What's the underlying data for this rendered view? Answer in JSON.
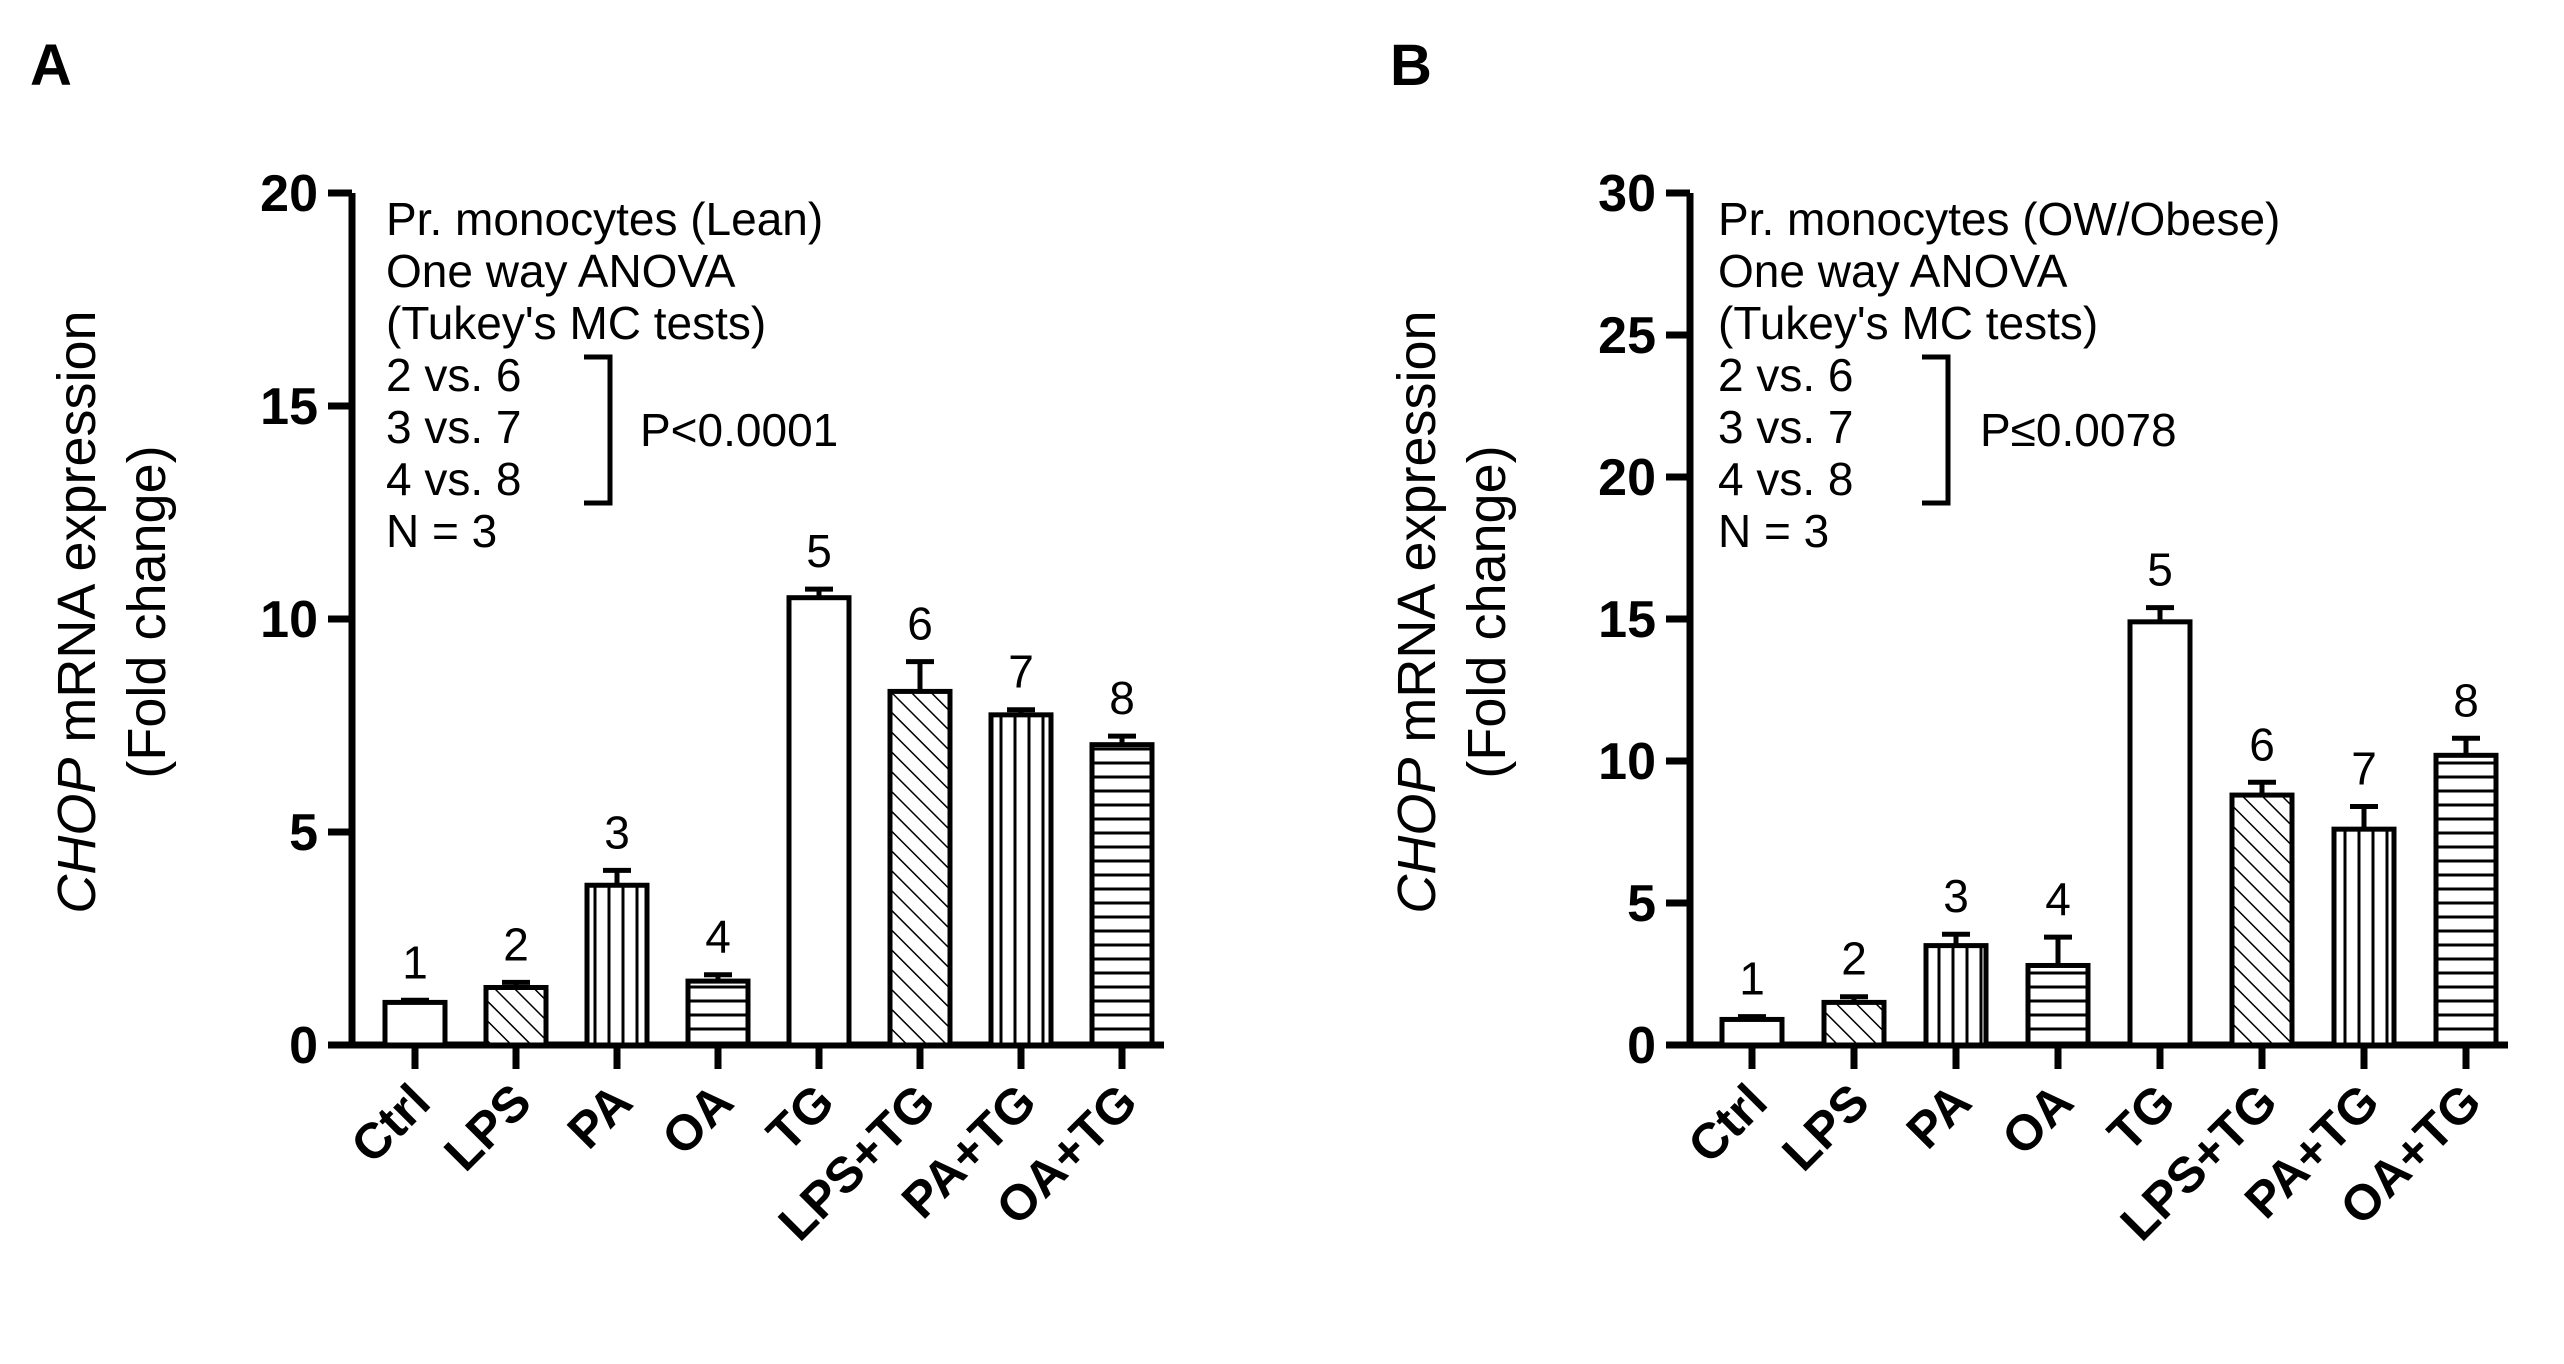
{
  "chart_data": [
    {
      "type": "bar",
      "panel": "A",
      "ylabel_italic": "CHOP",
      "ylabel_rest": " mRNA expression",
      "ylabel_line2": "(Fold change)",
      "ylim": [
        0,
        20
      ],
      "yticks": [
        "0",
        "5",
        "10",
        "15",
        "20"
      ],
      "categories": [
        "Ctrl",
        "LPS",
        "PA",
        "OA",
        "TG",
        "LPS+TG",
        "PA+TG",
        "OA+TG"
      ],
      "bar_numbers": [
        "1",
        "2",
        "3",
        "4",
        "5",
        "6",
        "7",
        "8"
      ],
      "values": [
        1.0,
        1.35,
        3.75,
        1.5,
        10.5,
        8.3,
        7.75,
        7.05
      ],
      "errors": [
        0.05,
        0.12,
        0.35,
        0.15,
        0.2,
        0.7,
        0.12,
        0.2
      ],
      "patterns": [
        "none",
        "diag",
        "vert",
        "horiz",
        "none",
        "diag",
        "vert",
        "horiz"
      ],
      "annotation": {
        "lines": [
          "Pr. monocytes (Lean)",
          "One way ANOVA",
          "(Tukey's MC tests)"
        ],
        "comparisons": [
          "2 vs. 6",
          "3 vs. 7",
          "4 vs. 8"
        ],
        "pvalue": "P<0.0001",
        "n": "N = 3"
      }
    },
    {
      "type": "bar",
      "panel": "B",
      "ylabel_italic": "CHOP",
      "ylabel_rest": " mRNA expression",
      "ylabel_line2": "(Fold change)",
      "ylim": [
        0,
        30
      ],
      "yticks": [
        "0",
        "5",
        "10",
        "15",
        "20",
        "25",
        "30"
      ],
      "categories": [
        "Ctrl",
        "LPS",
        "PA",
        "OA",
        "TG",
        "LPS+TG",
        "PA+TG",
        "OA+TG"
      ],
      "bar_numbers": [
        "1",
        "2",
        "3",
        "4",
        "5",
        "6",
        "7",
        "8"
      ],
      "values": [
        0.9,
        1.5,
        3.5,
        2.8,
        14.9,
        8.8,
        7.6,
        10.2
      ],
      "errors": [
        0.1,
        0.2,
        0.4,
        1.0,
        0.5,
        0.45,
        0.8,
        0.6
      ],
      "patterns": [
        "none",
        "diag",
        "vert",
        "horiz",
        "none",
        "diag",
        "vert",
        "horiz"
      ],
      "annotation": {
        "lines": [
          "Pr. monocytes (OW/Obese)",
          "One way ANOVA",
          "(Tukey's MC tests)"
        ],
        "comparisons": [
          "2 vs. 6",
          "3 vs. 7",
          "4 vs. 8"
        ],
        "pvalue": "P≤0.0078",
        "n": "N = 3"
      }
    }
  ]
}
